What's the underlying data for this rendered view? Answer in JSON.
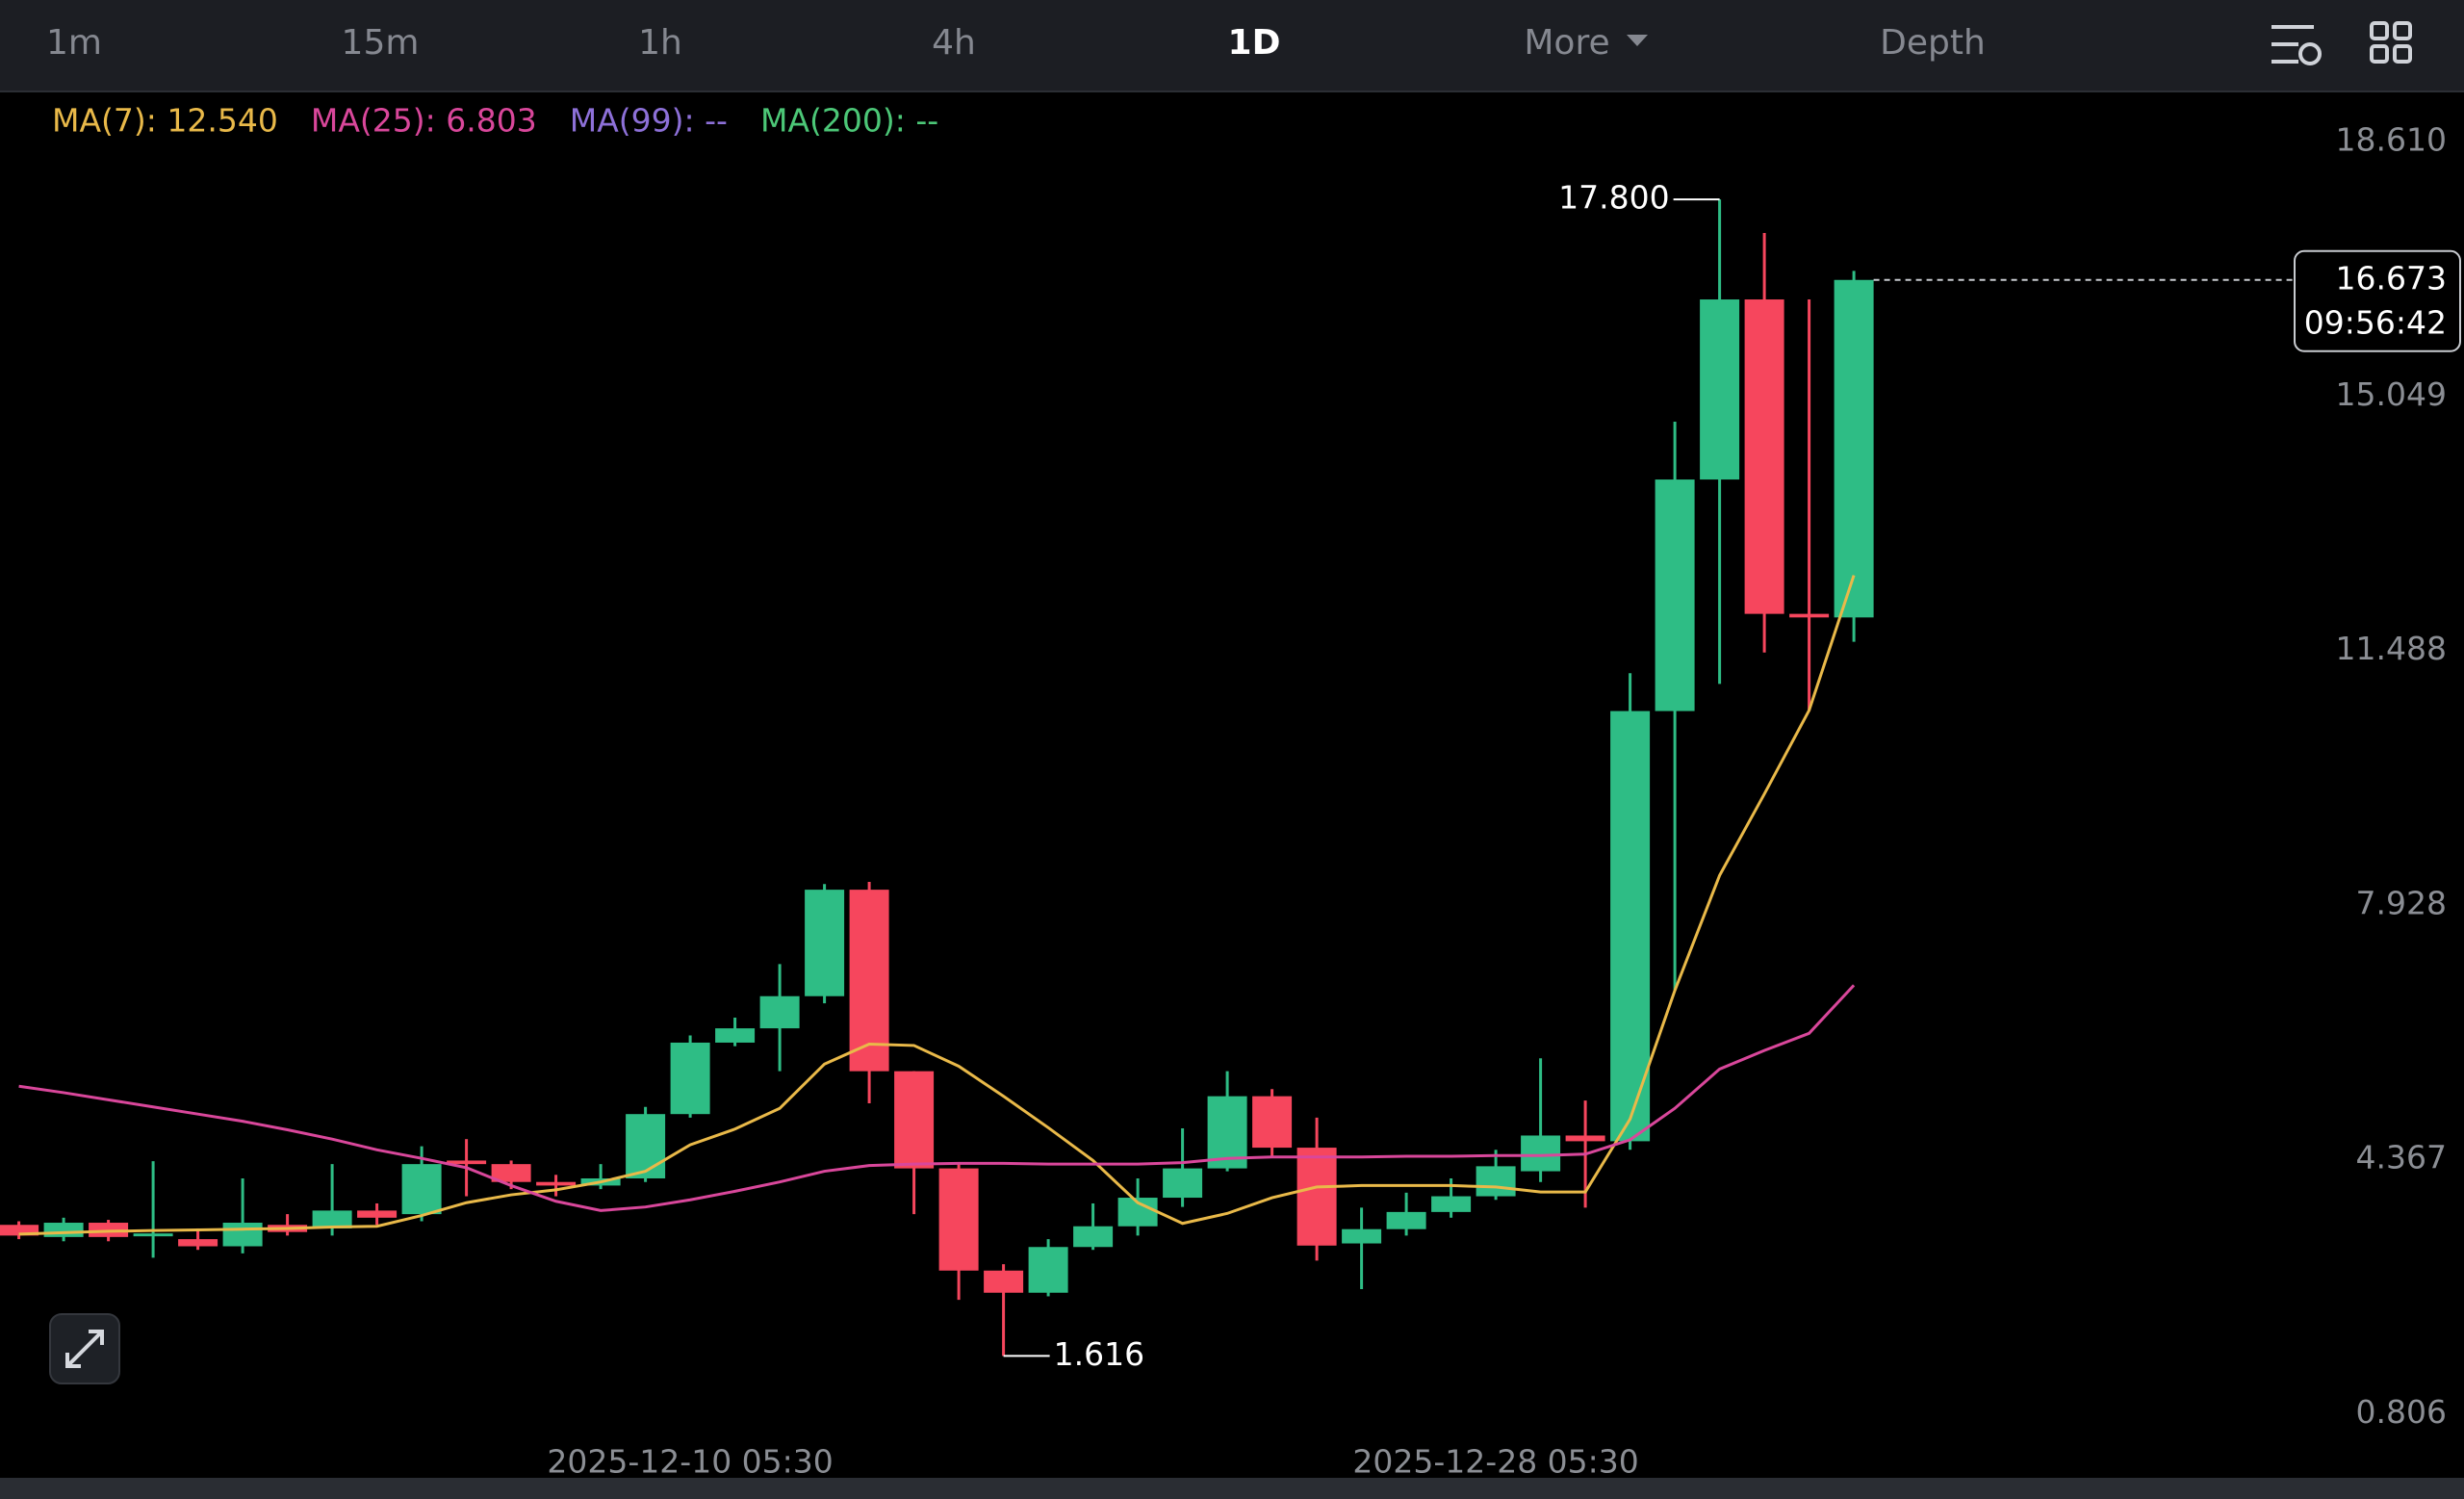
{
  "tabs": [
    "1m",
    "15m",
    "1h",
    "4h",
    "1D",
    "More",
    "Depth"
  ],
  "active_tab": "1D",
  "chart_data": {
    "type": "candlestick",
    "categories": [
      null,
      null,
      null,
      null,
      null,
      null,
      null,
      null,
      null,
      null,
      null,
      null,
      null,
      null,
      null,
      "2025-12-10 05:30",
      null,
      null,
      null,
      null,
      null,
      null,
      null,
      null,
      null,
      null,
      null,
      null,
      null,
      null,
      null,
      null,
      null,
      "2025-12-28 05:30",
      null,
      null,
      null,
      null,
      null,
      null,
      null,
      null
    ],
    "open": [
      3.45,
      3.28,
      3.48,
      3.3,
      3.25,
      3.15,
      3.45,
      3.4,
      3.65,
      3.6,
      4.35,
      4.3,
      4.05,
      4.0,
      4.1,
      5.0,
      6.0,
      6.2,
      6.65,
      8.14,
      5.6,
      4.24,
      2.81,
      2.5,
      3.14,
      3.43,
      3.83,
      4.24,
      5.25,
      4.53,
      3.19,
      3.39,
      3.63,
      3.85,
      4.2,
      4.7,
      4.62,
      10.64,
      13.88,
      16.4,
      12.0,
      11.95
    ],
    "high": [
      3.5,
      3.55,
      3.52,
      4.34,
      3.4,
      4.1,
      3.6,
      4.3,
      3.75,
      4.55,
      4.65,
      4.35,
      4.15,
      4.3,
      5.1,
      6.1,
      6.35,
      7.1,
      8.22,
      8.25,
      5.6,
      4.3,
      2.9,
      3.25,
      3.75,
      4.1,
      4.8,
      5.6,
      5.35,
      4.95,
      3.69,
      3.9,
      4.1,
      4.5,
      5.78,
      5.19,
      11.17,
      14.69,
      17.8,
      17.33,
      16.4,
      16.8
    ],
    "low": [
      3.25,
      3.22,
      3.22,
      2.99,
      3.1,
      3.05,
      3.3,
      3.3,
      3.45,
      3.5,
      3.85,
      3.95,
      3.85,
      3.95,
      4.05,
      4.95,
      5.95,
      5.6,
      6.55,
      5.15,
      3.6,
      2.4,
      1.616,
      2.45,
      3.1,
      3.3,
      3.7,
      4.2,
      4.4,
      2.95,
      2.55,
      3.3,
      3.55,
      3.8,
      4.05,
      3.69,
      4.5,
      6.73,
      11.02,
      11.46,
      10.64,
      11.61
    ],
    "close": [
      3.3,
      3.48,
      3.28,
      3.33,
      3.15,
      3.48,
      3.35,
      3.65,
      3.55,
      4.3,
      4.3,
      4.05,
      4.0,
      4.1,
      5.0,
      6.0,
      6.2,
      6.65,
      8.14,
      5.6,
      4.24,
      2.81,
      2.5,
      3.14,
      3.43,
      3.83,
      4.24,
      5.25,
      4.53,
      3.16,
      3.39,
      3.63,
      3.85,
      4.27,
      4.7,
      4.62,
      10.64,
      13.88,
      16.4,
      12.0,
      11.95,
      16.673
    ],
    "up_color": "#2ebd85",
    "down_color": "#f6465d",
    "ma_series": [
      {
        "name": "MA(7): 12.540",
        "color": "#e9b949",
        "values": [
          3.32,
          3.34,
          3.36,
          3.37,
          3.38,
          3.39,
          3.4,
          3.42,
          3.43,
          3.58,
          3.76,
          3.87,
          3.94,
          4.05,
          4.2,
          4.57,
          4.79,
          5.08,
          5.7,
          5.98,
          5.96,
          5.67,
          5.25,
          4.81,
          4.35,
          3.76,
          3.47,
          3.61,
          3.83,
          3.98,
          4.0,
          4.0,
          4.0,
          3.98,
          3.91,
          3.91,
          4.93,
          6.73,
          8.34,
          9.48,
          10.65,
          12.54
        ]
      },
      {
        "name": "MA(25): 6.803",
        "color": "#d9479b",
        "values": [
          5.39,
          5.3,
          5.2,
          5.1,
          5.0,
          4.9,
          4.78,
          4.65,
          4.5,
          4.38,
          4.25,
          4.0,
          3.78,
          3.65,
          3.7,
          3.8,
          3.92,
          4.05,
          4.2,
          4.28,
          4.3,
          4.31,
          4.31,
          4.3,
          4.3,
          4.3,
          4.32,
          4.38,
          4.4,
          4.4,
          4.4,
          4.41,
          4.41,
          4.42,
          4.42,
          4.44,
          4.64,
          5.08,
          5.63,
          5.89,
          6.13,
          6.803
        ]
      },
      {
        "name": "MA(99): --",
        "color": "#8d70d8"
      },
      {
        "name": "MA(200): --",
        "color": "#4cc777"
      }
    ],
    "ylim": [
      -0.09,
      19.27
    ],
    "yticks": [
      {
        "value": 18.61,
        "label": "18.610"
      },
      15.049,
      11.488,
      7.928,
      4.367,
      0.806
    ],
    "high_label": {
      "value": 17.8,
      "label": "17.800"
    },
    "low_label": {
      "value": 1.616,
      "label": "1.616"
    },
    "last_price": {
      "value": 16.673,
      "countdown": "09:56:42"
    }
  }
}
